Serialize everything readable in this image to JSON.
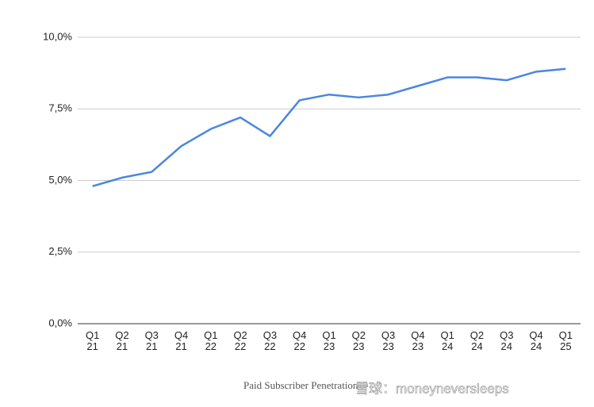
{
  "chart_data": {
    "type": "line",
    "categories": [
      "Q1 21",
      "Q2 21",
      "Q3 21",
      "Q4 21",
      "Q1 22",
      "Q2 22",
      "Q3 22",
      "Q4 22",
      "Q1 23",
      "Q2 23",
      "Q3 23",
      "Q4 23",
      "Q1 24",
      "Q2 24",
      "Q3 24",
      "Q4 24",
      "Q1 25"
    ],
    "series": [
      {
        "name": "Paid Subscriber Penetration",
        "color": "#4a86e0",
        "values": [
          4.8,
          5.1,
          5.3,
          6.2,
          6.8,
          7.2,
          6.55,
          7.8,
          8.0,
          7.9,
          8.0,
          8.3,
          8.6,
          8.6,
          8.5,
          8.8,
          8.9
        ]
      }
    ],
    "ylim": [
      0,
      10
    ],
    "yticks": [
      {
        "value": 0,
        "label": "0,0%"
      },
      {
        "value": 2.5,
        "label": "2,5%"
      },
      {
        "value": 5,
        "label": "5,0%"
      },
      {
        "value": 7.5,
        "label": "7,5%"
      },
      {
        "value": 10,
        "label": "10,0%"
      }
    ],
    "grid": true,
    "watermark": "雪球：moneyneversleeps"
  }
}
